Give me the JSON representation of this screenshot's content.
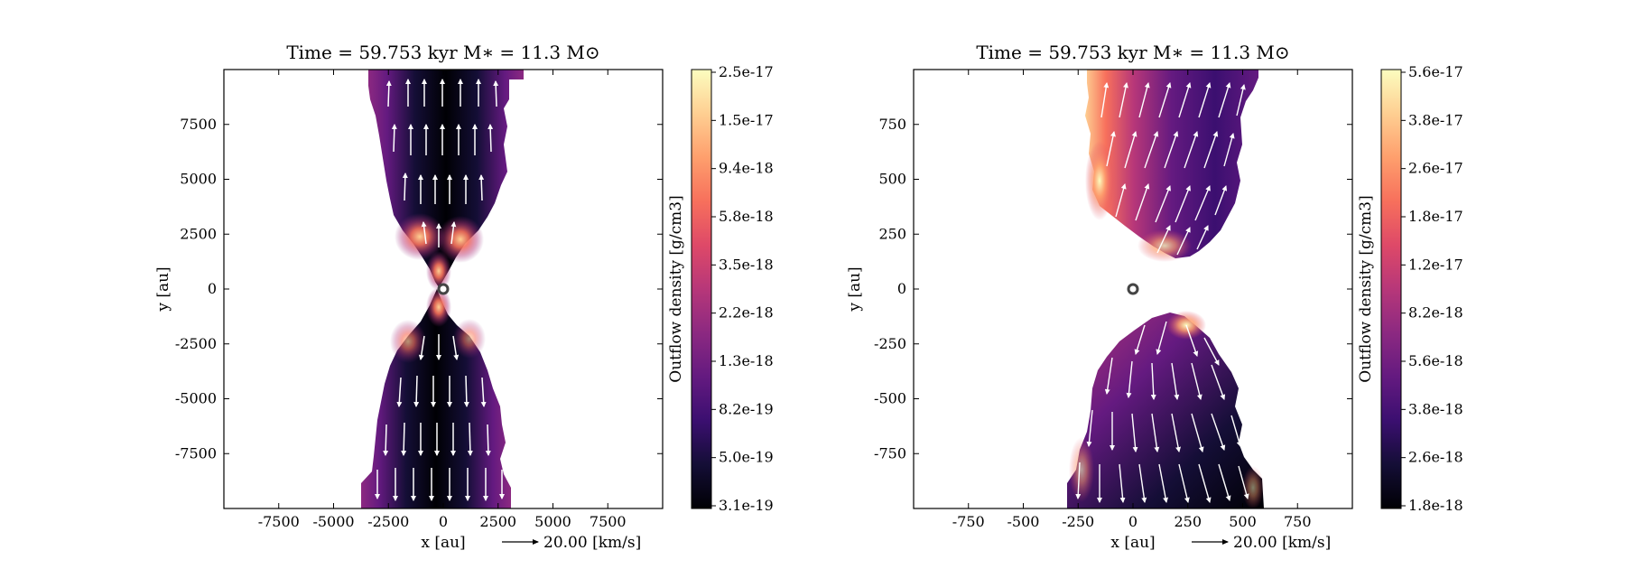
{
  "chart_data": [
    {
      "type": "heatmap",
      "title": "Time = 59.753 kyr    M∗ = 11.3 M⊙",
      "xlabel": "x [au]",
      "ylabel": "y [au]",
      "xlim": [
        -10000,
        10000
      ],
      "ylim": [
        -10000,
        10000
      ],
      "xticks": [
        -7500,
        -5000,
        -2500,
        0,
        2500,
        5000,
        7500
      ],
      "yticks": [
        7500,
        5000,
        2500,
        0,
        -2500,
        -5000,
        -7500
      ],
      "star_position": [
        0,
        0
      ],
      "velocity_key": "20.00 [km/s]",
      "colorbar": {
        "label": "Outflow density [g/cm3]",
        "colormap": "magma",
        "ticks": [
          "2.5e-17",
          "1.5e-17",
          "9.4e-18",
          "5.8e-18",
          "3.5e-18",
          "2.2e-18",
          "1.3e-18",
          "8.2e-19",
          "5.0e-19",
          "3.1e-19"
        ]
      },
      "outflow": {
        "shape": "bipolar hourglass",
        "lobe_half_width_au": [
          [
            0,
            300
          ],
          [
            2500,
            1700
          ],
          [
            5500,
            2500
          ],
          [
            8000,
            3500
          ],
          [
            10000,
            3500
          ]
        ],
        "edge_density": "high (orange/yellow near base)",
        "axis_density": "low (black)",
        "velocity_direction": "radially away from star along +y / -y"
      }
    },
    {
      "type": "heatmap",
      "title": "Time = 59.753 kyr    M∗ = 11.3 M⊙",
      "xlabel": "x [au]",
      "ylabel": "y [au]",
      "xlim": [
        -1000,
        1000
      ],
      "ylim": [
        -1000,
        1000
      ],
      "xticks": [
        -750,
        -500,
        -250,
        0,
        250,
        500,
        750
      ],
      "yticks": [
        750,
        500,
        250,
        0,
        -250,
        -500,
        -750
      ],
      "star_position": [
        0,
        0
      ],
      "velocity_key": "20.00 [km/s]",
      "colorbar": {
        "label": "Outflow density [g/cm3]",
        "colormap": "magma",
        "ticks": [
          "5.6e-17",
          "3.8e-17",
          "2.6e-17",
          "1.8e-17",
          "1.2e-17",
          "8.2e-18",
          "5.6e-18",
          "3.8e-18",
          "2.6e-18",
          "1.8e-18"
        ]
      },
      "outflow": {
        "shape": "bipolar lobes with cavity gap near star",
        "upper_lobe_base_au": 120,
        "lower_lobe_base_au": -110,
        "upper_lobe_x_range_au": [
          -220,
          560
        ],
        "lower_lobe_x_range_au": [
          -300,
          590
        ],
        "velocity_direction": "tilted, pointing away from star"
      }
    }
  ]
}
